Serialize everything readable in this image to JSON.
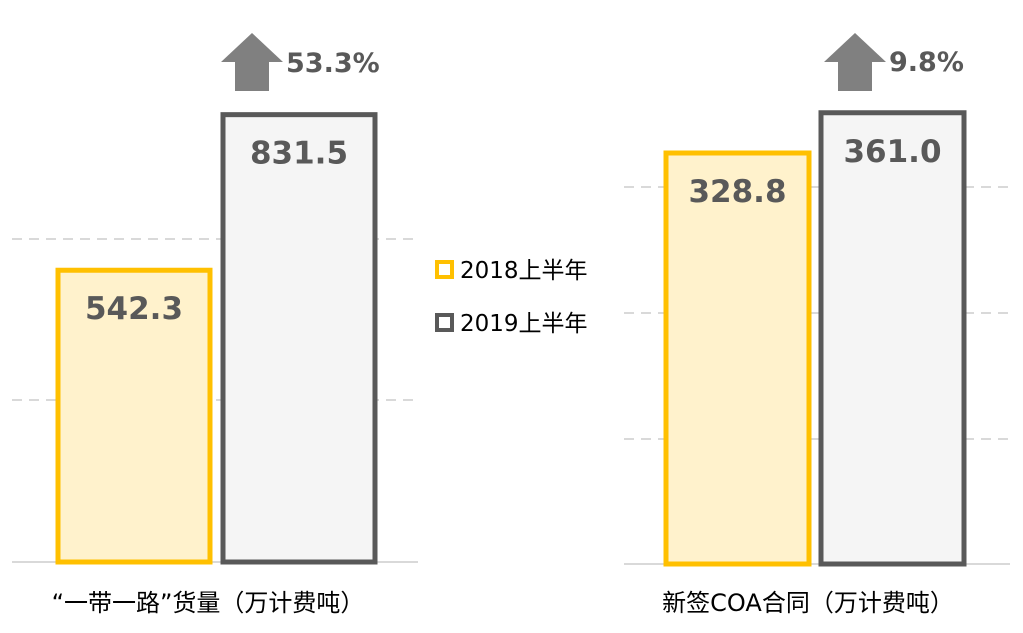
{
  "colors": {
    "series_2018_fill": "#FFF2CC",
    "series_2018_stroke": "#FFC000",
    "series_2019_fill": "#F5F5F5",
    "series_2019_stroke": "#595959",
    "arrow": "#808080",
    "gridline": "#D9D9D9"
  },
  "legend": {
    "items": [
      {
        "label": "2018上半年",
        "color": "#FFC000"
      },
      {
        "label": "2019上半年",
        "color": "#595959"
      }
    ]
  },
  "chart_data": [
    {
      "type": "bar",
      "title": "",
      "xlabel": "“一带一路”货量（万计费吨）",
      "ylabel": "",
      "grid": true,
      "series": [
        {
          "name": "2018上半年",
          "values": [
            542.3
          ],
          "labels": [
            "542.3"
          ]
        },
        {
          "name": "2019上半年",
          "values": [
            831.5
          ],
          "labels": [
            "831.5"
          ]
        }
      ],
      "growth": "53.3%",
      "growth_icon": "up-arrow-icon"
    },
    {
      "type": "bar",
      "title": "",
      "xlabel": "新签COA合同（万计费吨）",
      "ylabel": "",
      "grid": true,
      "series": [
        {
          "name": "2018上半年",
          "values": [
            328.8
          ],
          "labels": [
            "328.8"
          ]
        },
        {
          "name": "2019上半年",
          "values": [
            361.0
          ],
          "labels": [
            "361.0"
          ]
        }
      ],
      "growth": "9.8%",
      "growth_icon": "up-arrow-icon"
    }
  ]
}
